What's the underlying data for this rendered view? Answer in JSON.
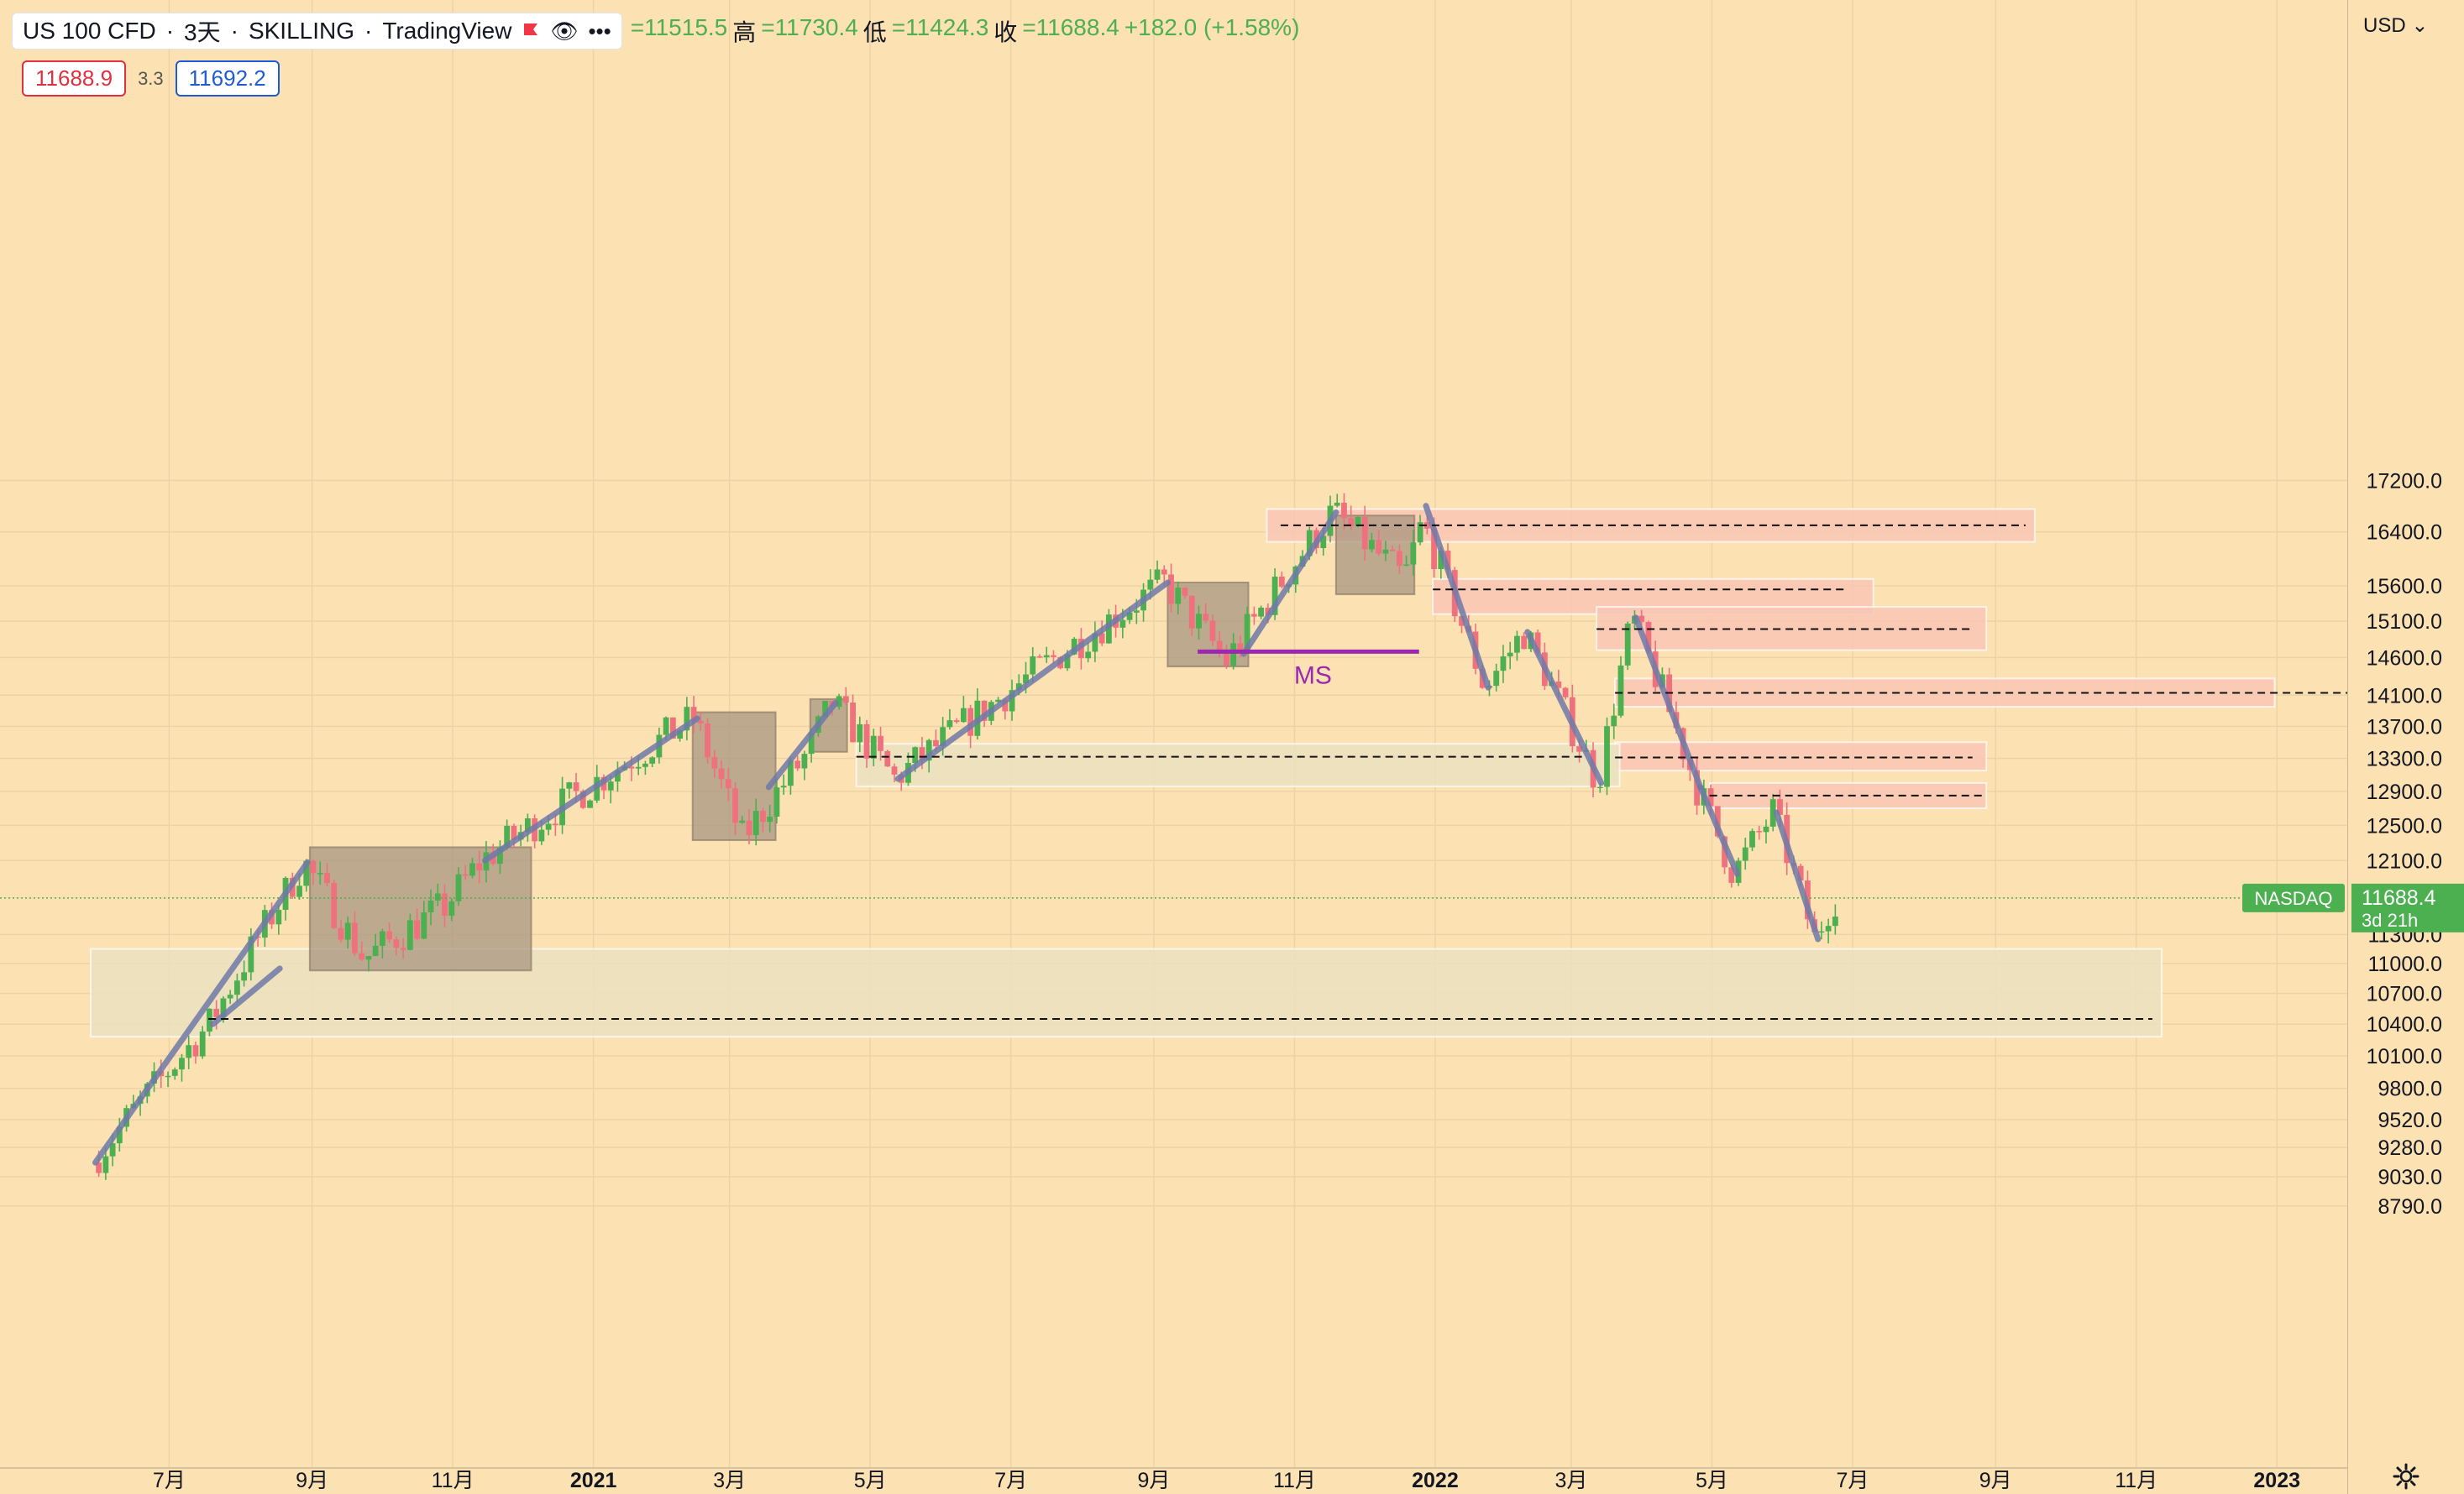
{
  "header": {
    "symbol": "US 100 CFD",
    "interval": "3天",
    "broker": "SKILLING",
    "platform": "TradingView",
    "separator": "·",
    "flag_icon": "red-flag-icon",
    "eye_icon": "eye-icon",
    "more_icon": "more-icon",
    "ohlc": [
      {
        "label": "",
        "value": "=11515.5"
      },
      {
        "label": "高",
        "value": "=11730.4"
      },
      {
        "label": "低",
        "value": "=11424.3"
      },
      {
        "label": "收",
        "value": "=11688.4"
      },
      {
        "label": "",
        "value": "+182.0 (+1.58%)"
      }
    ]
  },
  "quote": {
    "sell": "11688.9",
    "spread": "3.3",
    "buy": "11692.2"
  },
  "axis": {
    "currency": "USD",
    "price_ticks": [
      "17200.0",
      "16400.0",
      "15600.0",
      "15100.0",
      "14600.0",
      "14100.0",
      "13700.0",
      "13300.0",
      "12900.0",
      "12500.0",
      "12100.0",
      "11300.0",
      "11000.0",
      "10700.0",
      "10400.0",
      "10100.0",
      "9800.0",
      "9520.0",
      "9280.0",
      "9030.0",
      "8790.0"
    ],
    "time_ticks": [
      "7月",
      "9月",
      "11月",
      "2021",
      "3月",
      "5月",
      "7月",
      "9月",
      "11月",
      "2022",
      "3月",
      "5月",
      "7月",
      "9月",
      "11月",
      "2023"
    ],
    "bold_time_ticks": [
      "2021",
      "2022",
      "2023"
    ],
    "last_price_label": "NASDAQ",
    "last_price": "11688.4",
    "countdown": "3d 21h"
  },
  "annotations": {
    "ms_label": "MS"
  },
  "colors": {
    "background": "#fce1b3",
    "up_candle": "#4caf50",
    "down_candle": "#f0717e",
    "trend_line": "#6f79a8",
    "resistance_zone": "#f9c6b4",
    "support_zone": "#ebe1bf",
    "consolidation_box": "#a89680",
    "ms_line": "#9c27b0",
    "last_price_badge": "#4caf50"
  },
  "chart_data": {
    "type": "candlestick",
    "title": "US 100 CFD · 3天 · SKILLING",
    "ylim": [
      8650,
      17600
    ],
    "y_scale": "log",
    "xlabel": "",
    "ylabel": "",
    "grid": true,
    "last": {
      "open": 11515.5,
      "high": 11730.4,
      "low": 11424.3,
      "close": 11688.4,
      "change": 182.0,
      "change_pct": 1.58
    },
    "price_path": [
      [
        "2020-05-30",
        9150
      ],
      [
        "2020-07-20",
        10400
      ],
      [
        "2020-08-30",
        12080
      ],
      [
        "2020-09-25",
        11050
      ],
      [
        "2020-10-30",
        11600
      ],
      [
        "2020-11-15",
        12100
      ],
      [
        "2021-02-15",
        13800
      ],
      [
        "2021-03-08",
        12350
      ],
      [
        "2021-04-05",
        13350
      ],
      [
        "2021-04-16",
        14000
      ],
      [
        "2021-05-13",
        13050
      ],
      [
        "2021-09-07",
        15650
      ],
      [
        "2021-10-04",
        14550
      ],
      [
        "2021-11-19",
        16700
      ],
      [
        "2021-12-20",
        15700
      ],
      [
        "2021-12-28",
        16550
      ],
      [
        "2022-01-24",
        14200
      ],
      [
        "2022-02-10",
        14950
      ],
      [
        "2022-03-14",
        13000
      ],
      [
        "2022-03-29",
        15150
      ],
      [
        "2022-04-26",
        12950
      ],
      [
        "2022-05-12",
        11950
      ],
      [
        "2022-05-29",
        12650
      ],
      [
        "2022-06-16",
        11250
      ],
      [
        "2022-06-24",
        11688.4
      ]
    ],
    "resistance_levels": [
      16500,
      15550,
      14990,
      14130,
      13310,
      12850
    ],
    "support_levels": [
      10450,
      13320
    ],
    "ms_level": 14680
  }
}
